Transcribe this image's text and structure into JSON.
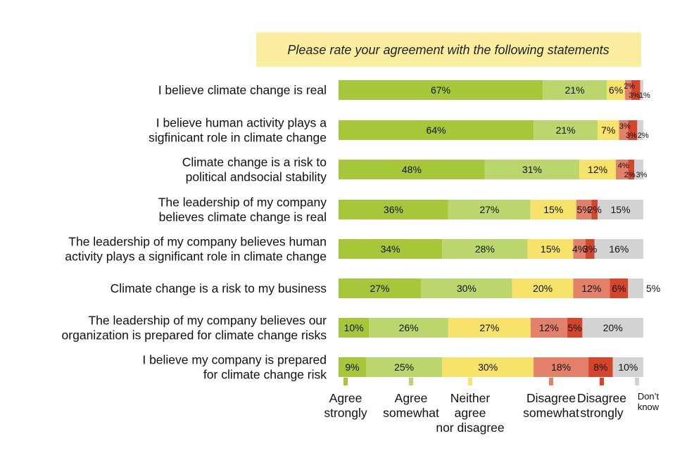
{
  "chart_data": {
    "type": "bar",
    "orientation": "horizontal",
    "stacked": true,
    "title": "Please rate your agreement with the following statements",
    "categories": [
      [
        "I believe climate change is real"
      ],
      [
        "I believe human activity plays a",
        "sigfinicant role in climate change"
      ],
      [
        "Climate change is a risk to",
        "political andsocial stability"
      ],
      [
        "The leadership of my company",
        "believes climate change is real"
      ],
      [
        "The leadership of my company believes human",
        "activity plays a significant role in climate change"
      ],
      [
        "Climate change is a risk to my business"
      ],
      [
        "The leadership of my company believes our",
        "organization is  prepared for climate change risks"
      ],
      [
        "I believe my company is prepared",
        "for climate change risk"
      ]
    ],
    "series": [
      {
        "name": "Agree strongly",
        "legend_lines": [
          "Agree",
          "strongly"
        ],
        "color": "#a6c73a",
        "values": [
          67,
          64,
          48,
          36,
          34,
          27,
          10,
          9
        ]
      },
      {
        "name": "Agree somewhat",
        "legend_lines": [
          "Agree",
          "somewhat"
        ],
        "color": "#bcd66e",
        "values": [
          21,
          21,
          31,
          27,
          28,
          30,
          26,
          25
        ]
      },
      {
        "name": "Neither agree nor disagree",
        "legend_lines": [
          "Neither",
          "agree",
          "nor disagree"
        ],
        "color": "#f7e26a",
        "values": [
          6,
          7,
          12,
          15,
          15,
          20,
          27,
          30
        ]
      },
      {
        "name": "Disagree somewhat",
        "legend_lines": [
          "Disagree",
          "somewhat"
        ],
        "color": "#e2806a",
        "values": [
          2,
          3,
          4,
          5,
          4,
          12,
          12,
          18
        ]
      },
      {
        "name": "Disagree strongly",
        "legend_lines": [
          "Disagree",
          "strongly"
        ],
        "color": "#d4462c",
        "values": [
          3,
          3,
          2,
          2,
          3,
          6,
          5,
          8
        ]
      },
      {
        "name": "Don't know",
        "legend_lines": [
          "Don’t",
          "know"
        ],
        "color": "#d3d3d3",
        "values": [
          1,
          2,
          3,
          15,
          16,
          5,
          20,
          10
        ]
      }
    ],
    "xlim": [
      0,
      100
    ],
    "grid": false,
    "legend": "bottom"
  }
}
